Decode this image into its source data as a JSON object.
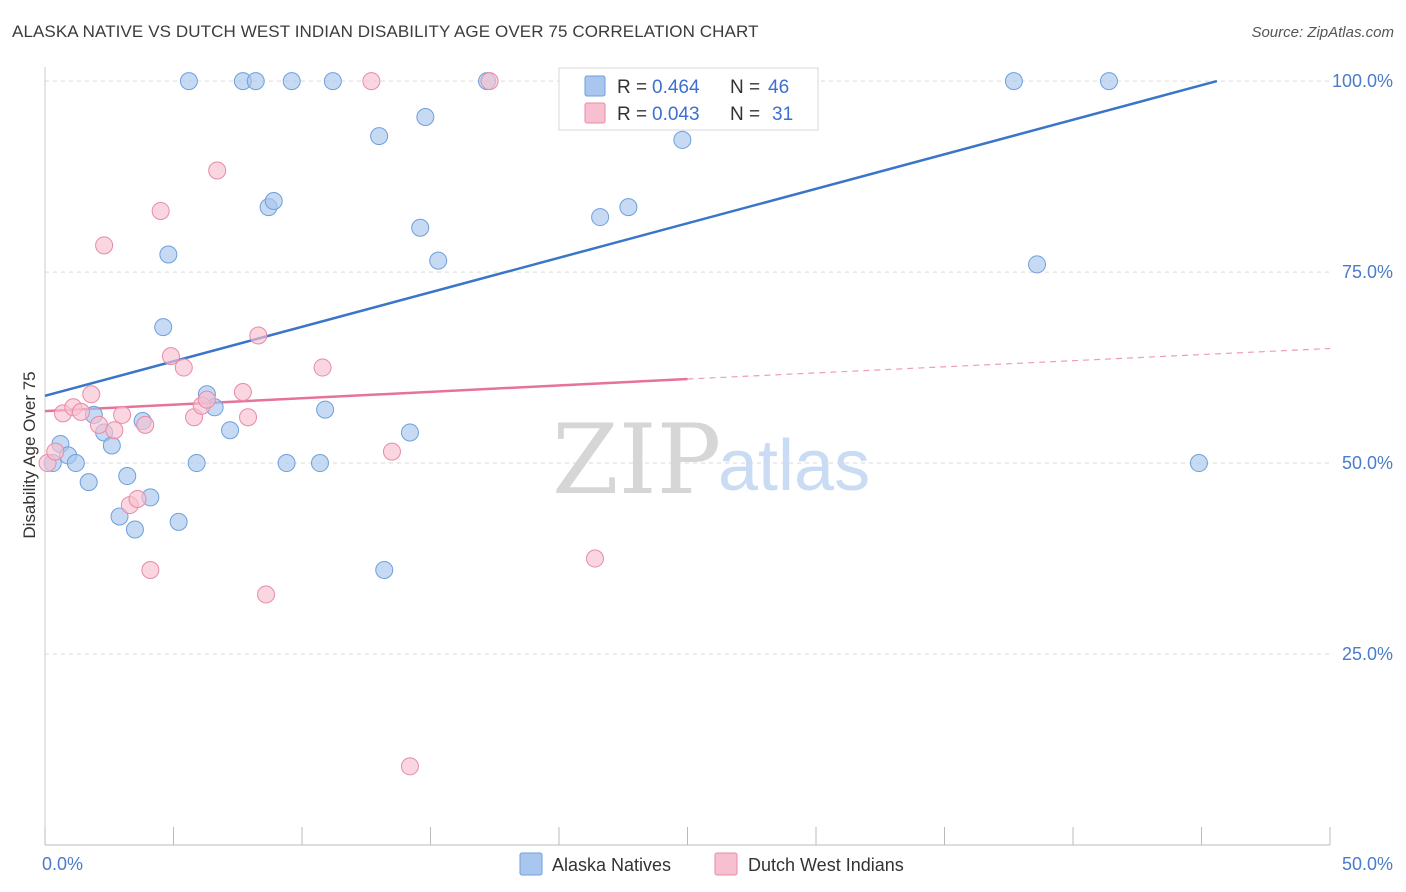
{
  "header": {
    "title": "ALASKA NATIVE VS DUTCH WEST INDIAN DISABILITY AGE OVER 75 CORRELATION CHART",
    "source": "Source: ZipAtlas.com"
  },
  "watermark": {
    "zip": "ZIP",
    "atlas": "atlas"
  },
  "legend_top": {
    "rows": [
      {
        "r_label": "R = ",
        "r_value": "0.464",
        "n_label": "N = ",
        "n_value": "46",
        "color": "#a8c6ee",
        "stroke": "#6f9fdd"
      },
      {
        "r_label": "R = ",
        "r_value": "0.043",
        "n_label": "N = ",
        "n_value": "31",
        "color": "#f7c0d0",
        "stroke": "#e88aa8"
      }
    ]
  },
  "legend_bottom": {
    "items": [
      {
        "label": "Alaska Natives",
        "color": "#a8c6ee",
        "stroke": "#6f9fdd"
      },
      {
        "label": "Dutch West Indians",
        "color": "#f7c0d0",
        "stroke": "#e88aa8"
      }
    ]
  },
  "chart_data": {
    "type": "scatter",
    "title": "ALASKA NATIVE VS DUTCH WEST INDIAN DISABILITY AGE OVER 75 CORRELATION CHART",
    "xlabel": "",
    "ylabel": "Disability Age Over 75",
    "xlim": [
      0,
      50
    ],
    "ylim": [
      0,
      102.5
    ],
    "x_tick_labels": [
      {
        "value": 0,
        "label": "0.0%"
      },
      {
        "value": 50,
        "label": "50.0%"
      }
    ],
    "y_tick_labels": [
      {
        "value": 25,
        "label": "25.0%"
      },
      {
        "value": 50,
        "label": "50.0%"
      },
      {
        "value": 75,
        "label": "75.0%"
      },
      {
        "value": 100,
        "label": "100.0%"
      }
    ],
    "grid": "horizontal dashed",
    "legend_position": "top-center",
    "series": [
      {
        "name": "Alaska Natives",
        "color": "#a8c6ee",
        "stroke": "#6f9fdd",
        "trend": {
          "x": [
            0,
            45.6
          ],
          "y": [
            58.8,
            100
          ],
          "color": "#3a75c9"
        },
        "points": [
          [
            0.3,
            50.0
          ],
          [
            0.6,
            52.5
          ],
          [
            0.9,
            51.0
          ],
          [
            1.2,
            50.0
          ],
          [
            1.7,
            47.5
          ],
          [
            1.9,
            56.3
          ],
          [
            2.3,
            54.0
          ],
          [
            2.6,
            52.3
          ],
          [
            2.9,
            43.0
          ],
          [
            3.2,
            48.3
          ],
          [
            3.5,
            41.3
          ],
          [
            3.8,
            55.5
          ],
          [
            4.1,
            45.5
          ],
          [
            4.6,
            67.8
          ],
          [
            4.8,
            77.3
          ],
          [
            5.2,
            42.3
          ],
          [
            5.6,
            100.0
          ],
          [
            5.9,
            50.0
          ],
          [
            6.3,
            59.0
          ],
          [
            6.6,
            57.3
          ],
          [
            7.2,
            54.3
          ],
          [
            7.7,
            100.0
          ],
          [
            8.2,
            100.0
          ],
          [
            8.7,
            83.5
          ],
          [
            8.9,
            84.3
          ],
          [
            9.4,
            50.0
          ],
          [
            9.6,
            100.0
          ],
          [
            10.7,
            50.0
          ],
          [
            10.9,
            57.0
          ],
          [
            11.2,
            100.0
          ],
          [
            13.0,
            92.8
          ],
          [
            13.2,
            36.0
          ],
          [
            14.2,
            54.0
          ],
          [
            14.6,
            80.8
          ],
          [
            14.8,
            95.3
          ],
          [
            15.3,
            76.5
          ],
          [
            17.2,
            100.0
          ],
          [
            20.5,
            100.0
          ],
          [
            21.6,
            82.2
          ],
          [
            22.7,
            83.5
          ],
          [
            24.8,
            92.3
          ],
          [
            28.8,
            100.0
          ],
          [
            37.7,
            100.0
          ],
          [
            38.6,
            76.0
          ],
          [
            41.4,
            100.0
          ],
          [
            44.9,
            50.0
          ]
        ]
      },
      {
        "name": "Dutch West Indians",
        "color": "#f7c0d0",
        "stroke": "#e88aa8",
        "trend": {
          "x": [
            0,
            25.0
          ],
          "y": [
            56.8,
            61.0
          ],
          "color": "#e7739b",
          "dashed_extension": {
            "x": [
              25.0,
              50.0
            ],
            "y": [
              61.0,
              65.0
            ]
          }
        },
        "points": [
          [
            0.1,
            50.0
          ],
          [
            0.4,
            51.5
          ],
          [
            0.7,
            56.5
          ],
          [
            1.1,
            57.3
          ],
          [
            1.4,
            56.7
          ],
          [
            1.8,
            59.0
          ],
          [
            2.1,
            55.0
          ],
          [
            2.3,
            78.5
          ],
          [
            2.7,
            54.3
          ],
          [
            3.0,
            56.3
          ],
          [
            3.3,
            44.5
          ],
          [
            3.6,
            45.3
          ],
          [
            3.9,
            55.0
          ],
          [
            4.1,
            36.0
          ],
          [
            4.5,
            83.0
          ],
          [
            4.9,
            64.0
          ],
          [
            5.4,
            62.5
          ],
          [
            5.8,
            56.0
          ],
          [
            6.1,
            57.5
          ],
          [
            6.3,
            58.3
          ],
          [
            6.7,
            88.3
          ],
          [
            7.7,
            59.3
          ],
          [
            7.9,
            56.0
          ],
          [
            8.3,
            66.7
          ],
          [
            8.6,
            32.8
          ],
          [
            10.8,
            62.5
          ],
          [
            12.7,
            100.0
          ],
          [
            13.5,
            51.5
          ],
          [
            14.2,
            10.3
          ],
          [
            17.3,
            100.0
          ],
          [
            21.4,
            37.5
          ]
        ]
      }
    ]
  }
}
